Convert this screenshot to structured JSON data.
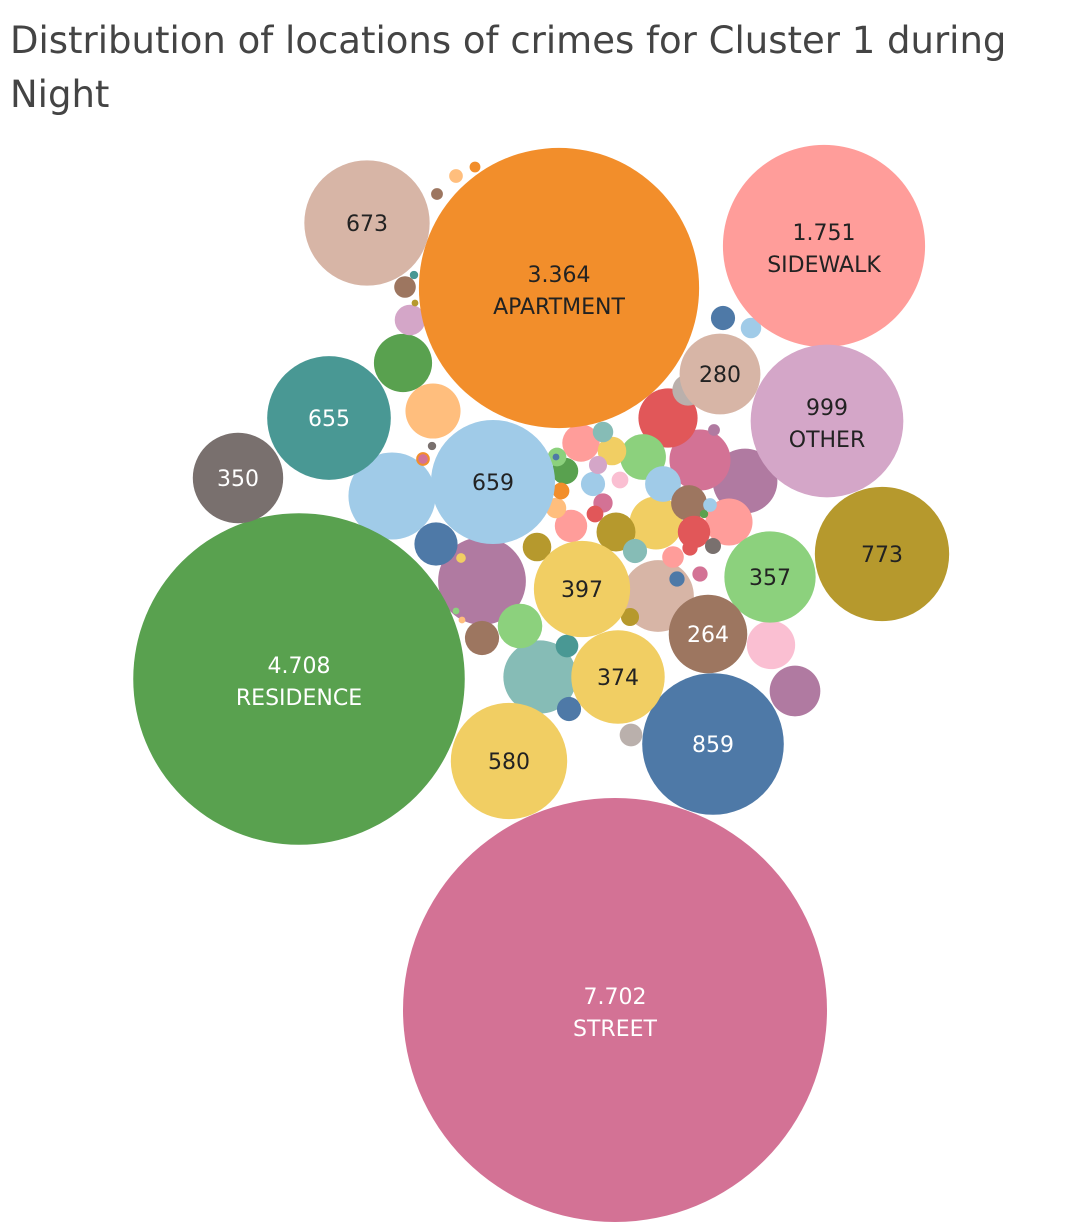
{
  "chart_data": {
    "type": "packed-bubble",
    "title": "Distribution of locations of crimes for Cluster 1 during Night",
    "value_format": "dot thousands separator",
    "colors": {
      "orange": "#f28e2b",
      "green": "#59a14f",
      "pink": "#d37295",
      "salmon": "#ff9d9a",
      "lilac": "#d4a6c8",
      "olive": "#b6992d",
      "blue": "#4e79a7",
      "teal": "#499894",
      "tan": "#d7b5a6",
      "lightblue": "#a0cbe8",
      "yellow": "#f1ce63",
      "brown": "#9d7660",
      "lightgreen": "#8cd17d",
      "taupe": "#79706e",
      "purple": "#b07aa1",
      "peach": "#ffbe7d",
      "red": "#e15759",
      "lightpink": "#fabfd2",
      "grey": "#bab0ac",
      "seafoam": "#86bcb6"
    },
    "bubbles": [
      {
        "location": "STREET",
        "value": 7702,
        "display": "7.702",
        "color": "pink"
      },
      {
        "location": "RESIDENCE",
        "value": 4708,
        "display": "4.708",
        "color": "green"
      },
      {
        "location": "APARTMENT",
        "value": 3364,
        "display": "3.364",
        "color": "orange"
      },
      {
        "location": "SIDEWALK",
        "value": 1751,
        "display": "1.751",
        "color": "salmon"
      },
      {
        "location": "OTHER",
        "value": 999,
        "display": "999",
        "color": "lilac"
      },
      {
        "location": "",
        "value": 859,
        "display": "859",
        "color": "blue"
      },
      {
        "location": "",
        "value": 773,
        "display": "773",
        "color": "olive"
      },
      {
        "location": "",
        "value": 673,
        "display": "673",
        "color": "tan"
      },
      {
        "location": "",
        "value": 659,
        "display": "659",
        "color": "lightblue"
      },
      {
        "location": "",
        "value": 655,
        "display": "655",
        "color": "teal"
      },
      {
        "location": "",
        "value": 580,
        "display": "580",
        "color": "yellow"
      },
      {
        "location": "",
        "value": 397,
        "display": "397",
        "color": "yellow"
      },
      {
        "location": "",
        "value": 374,
        "display": "374",
        "color": "yellow"
      },
      {
        "location": "",
        "value": 357,
        "display": "357",
        "color": "lightgreen"
      },
      {
        "location": "",
        "value": 350,
        "display": "350",
        "color": "taupe"
      },
      {
        "location": "",
        "value": 280,
        "display": "280",
        "color": "tan"
      },
      {
        "location": "",
        "value": 264,
        "display": "264",
        "color": "brown"
      }
    ],
    "unlabeled_bubbles": [
      {
        "value": 330,
        "color": "purple"
      },
      {
        "value": 325,
        "color": "lightblue"
      },
      {
        "value": 230,
        "color": "seafoam"
      },
      {
        "value": 220,
        "color": "tan"
      },
      {
        "value": 180,
        "color": "purple"
      },
      {
        "value": 160,
        "color": "pink"
      },
      {
        "value": 150,
        "color": "red"
      },
      {
        "value": 145,
        "color": "green"
      },
      {
        "value": 130,
        "color": "peach"
      },
      {
        "value": 120,
        "color": "yellow"
      },
      {
        "value": 110,
        "color": "purple"
      },
      {
        "value": 100,
        "color": "lightpink"
      },
      {
        "value": 95,
        "color": "salmon"
      },
      {
        "value": 90,
        "color": "lightgreen"
      },
      {
        "value": 85,
        "color": "lightgreen"
      },
      {
        "value": 80,
        "color": "blue"
      },
      {
        "value": 65,
        "color": "olive"
      },
      {
        "value": 60,
        "color": "salmon"
      },
      {
        "value": 55,
        "color": "lightblue"
      },
      {
        "value": 55,
        "color": "brown"
      },
      {
        "value": 50,
        "color": "brown"
      },
      {
        "value": 45,
        "color": "red"
      },
      {
        "value": 45,
        "color": "salmon"
      },
      {
        "value": 42,
        "color": "grey"
      },
      {
        "value": 40,
        "color": "lilac"
      },
      {
        "value": 35,
        "color": "olive"
      },
      {
        "value": 35,
        "color": "yellow"
      },
      {
        "value": 30,
        "color": "green"
      },
      {
        "value": 25,
        "color": "seafoam"
      },
      {
        "value": 25,
        "color": "blue"
      },
      {
        "value": 25,
        "color": "lightblue"
      },
      {
        "value": 25,
        "color": "blue"
      },
      {
        "value": 22,
        "color": "teal"
      },
      {
        "value": 22,
        "color": "grey"
      },
      {
        "value": 20,
        "color": "brown"
      },
      {
        "value": 20,
        "color": "salmon"
      },
      {
        "value": 18,
        "color": "peach"
      },
      {
        "value": 18,
        "color": "lightblue"
      },
      {
        "value": 18,
        "color": "seafoam"
      },
      {
        "value": 16,
        "color": "pink"
      },
      {
        "value": 15,
        "color": "lightgreen"
      },
      {
        "value": 14,
        "color": "olive"
      },
      {
        "value": 14,
        "color": "lilac"
      },
      {
        "value": 12,
        "color": "red"
      },
      {
        "value": 12,
        "color": "orange"
      },
      {
        "value": 12,
        "color": "lightpink"
      },
      {
        "value": 11,
        "color": "taupe"
      },
      {
        "value": 10,
        "color": "blue"
      },
      {
        "value": 10,
        "color": "red"
      },
      {
        "value": 10,
        "color": "pink"
      },
      {
        "value": 8,
        "color": "lightblue"
      },
      {
        "value": 8,
        "color": "orange"
      },
      {
        "value": 8,
        "color": "peach"
      },
      {
        "value": 6,
        "color": "brown"
      },
      {
        "value": 6,
        "color": "purple"
      },
      {
        "value": 5,
        "color": "orange"
      },
      {
        "value": 4,
        "color": "yellow"
      },
      {
        "value": 4,
        "color": "pink"
      },
      {
        "value": 3,
        "color": "taupe"
      },
      {
        "value": 3,
        "color": "green"
      },
      {
        "value": 3,
        "color": "teal"
      },
      {
        "value": 2,
        "color": "blue"
      },
      {
        "value": 2,
        "color": "peach"
      },
      {
        "value": 2,
        "color": "lightgreen"
      },
      {
        "value": 2,
        "color": "olive"
      }
    ]
  }
}
